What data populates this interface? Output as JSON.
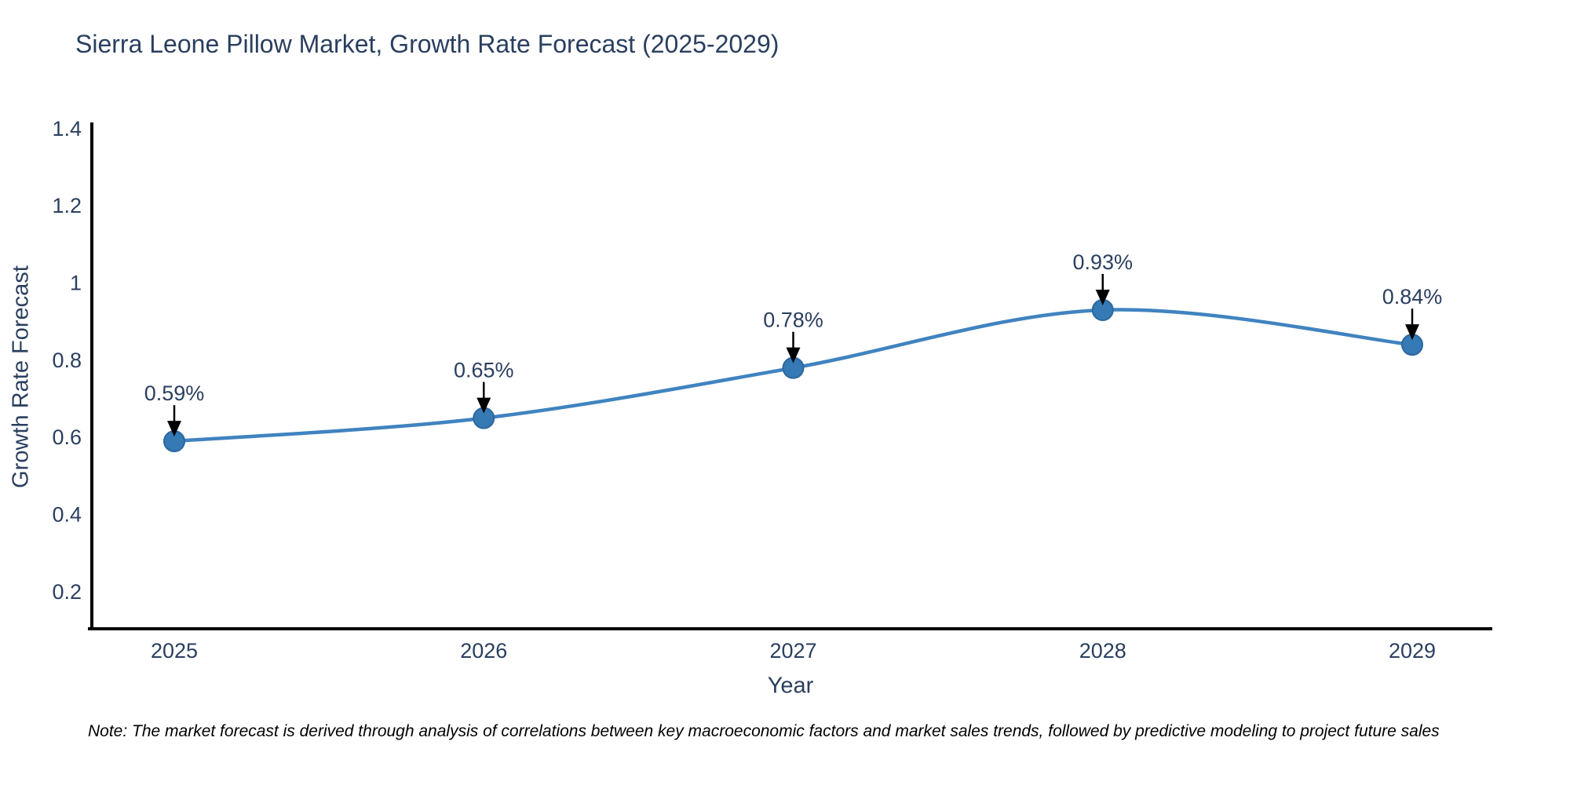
{
  "page": {
    "title": "Sierra Leone Pillow Market, Growth Rate Forecast (2025-2029)",
    "note": "Note: The market forecast is derived through analysis of correlations between key macroeconomic factors and market sales trends, followed by predictive modeling to project future sales"
  },
  "chart_data": {
    "type": "line",
    "title": "Sierra Leone Pillow Market, Growth Rate Forecast (2025-2029)",
    "xlabel": "Year",
    "ylabel": "Growth Rate Forecast",
    "categories": [
      "2025",
      "2026",
      "2027",
      "2028",
      "2029"
    ],
    "series": [
      {
        "name": "Growth Rate Forecast",
        "values": [
          0.59,
          0.65,
          0.78,
          0.93,
          0.84
        ]
      }
    ],
    "point_labels": [
      "0.59%",
      "0.65%",
      "0.78%",
      "0.93%",
      "0.84%"
    ],
    "ytick_labels": [
      "0.2",
      "0.4",
      "0.6",
      "0.8",
      "1",
      "1.2",
      "1.4"
    ],
    "yticks": [
      0.2,
      0.4,
      0.6,
      0.8,
      1.0,
      1.2,
      1.4
    ],
    "ylim": [
      0.1,
      1.416
    ],
    "line_shape": "spline",
    "grid": false,
    "legend_position": "none",
    "colors": {
      "line": "#4083c0",
      "marker": "#3579b5",
      "marker_edge": "#2d689e",
      "axis": "#000000",
      "text": "#2a3f5f",
      "arrow": "#000000",
      "background": "#ffffff"
    }
  }
}
